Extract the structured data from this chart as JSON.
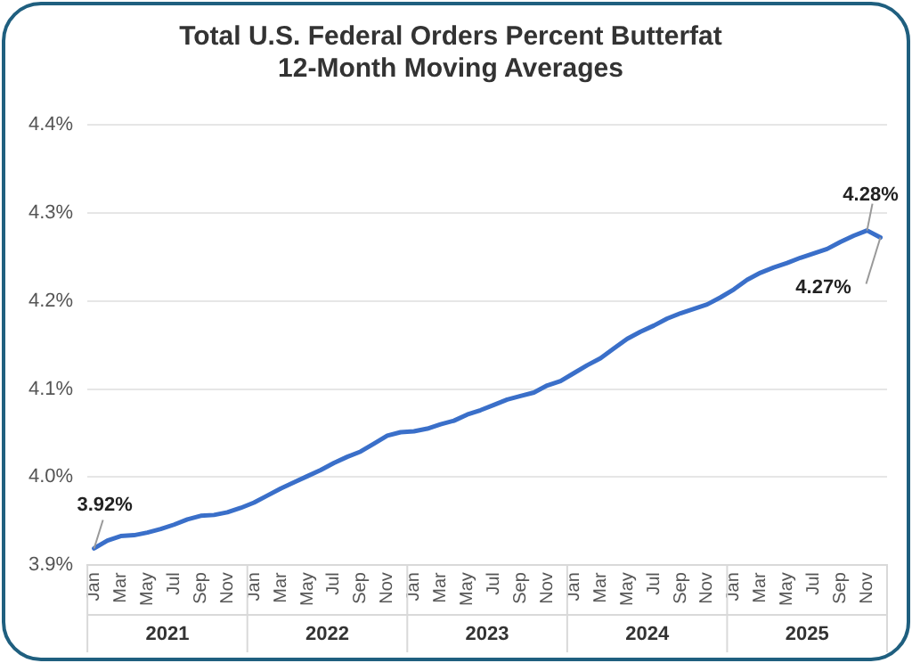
{
  "chart_data": {
    "type": "line",
    "title": "Total U.S. Federal Orders Percent Butterfat",
    "subtitle": "12-Month Moving Averages",
    "categories": [
      "Jan",
      null,
      "Mar",
      null,
      "May",
      null,
      "Jul",
      null,
      "Sep",
      null,
      "Nov",
      null,
      "Jan",
      null,
      "Mar",
      null,
      "May",
      null,
      "Jul",
      null,
      "Sep",
      null,
      "Nov",
      null,
      "Jan",
      null,
      "Mar",
      null,
      "May",
      null,
      "Jul",
      null,
      "Sep",
      null,
      "Nov",
      null,
      "Jan",
      null,
      "Mar",
      null,
      "May",
      null,
      "Jul",
      null,
      "Sep",
      null,
      "Nov",
      null,
      "Jan",
      null,
      "Mar",
      null,
      "May",
      null,
      "Jul",
      null,
      "Sep",
      null,
      "Nov",
      null
    ],
    "series": [
      {
        "color": "#3a6fc9",
        "values": [
          3.919,
          3.928,
          3.933,
          3.934,
          3.937,
          3.941,
          3.946,
          3.952,
          3.956,
          3.957,
          3.96,
          3.965,
          3.971,
          3.979,
          3.987,
          3.994,
          4.001,
          4.008,
          4.016,
          4.023,
          4.029,
          4.038,
          4.047,
          4.051,
          4.052,
          4.055,
          4.06,
          4.064,
          4.071,
          4.076,
          4.082,
          4.088,
          4.092,
          4.096,
          4.104,
          4.109,
          4.118,
          4.127,
          4.135,
          4.146,
          4.157,
          4.165,
          4.172,
          4.18,
          4.186,
          4.191,
          4.196,
          4.204,
          4.213,
          4.224,
          4.232,
          4.238,
          4.243,
          4.249,
          4.254,
          4.259,
          4.267,
          4.274,
          4.28,
          4.272
        ],
        "value_labels": [
          "3.92%",
          null,
          null,
          null,
          null,
          null,
          null,
          null,
          null,
          null,
          null,
          null,
          null,
          null,
          null,
          null,
          null,
          null,
          null,
          null,
          null,
          null,
          null,
          null,
          null,
          null,
          null,
          null,
          null,
          null,
          null,
          null,
          null,
          null,
          null,
          null,
          null,
          null,
          null,
          null,
          null,
          null,
          null,
          null,
          null,
          null,
          null,
          null,
          null,
          null,
          null,
          null,
          null,
          null,
          null,
          null,
          null,
          null,
          "4.28%",
          "4.27%"
        ]
      }
    ],
    "ylim": [
      3.9,
      4.4
    ],
    "yticks": [
      {
        "value": 3.9,
        "label": "3.9%"
      },
      {
        "value": 4.0,
        "label": "4.0%"
      },
      {
        "value": 4.1,
        "label": "4.1%"
      },
      {
        "value": 4.2,
        "label": "4.2%"
      },
      {
        "value": 4.3,
        "label": "4.3%"
      },
      {
        "value": 4.4,
        "label": "4.4%"
      }
    ],
    "grid": "y",
    "legend": false,
    "marker": "none",
    "line_style": "solid",
    "annotations": [
      "2021",
      "2022",
      "2023",
      "2024",
      "2025"
    ]
  }
}
